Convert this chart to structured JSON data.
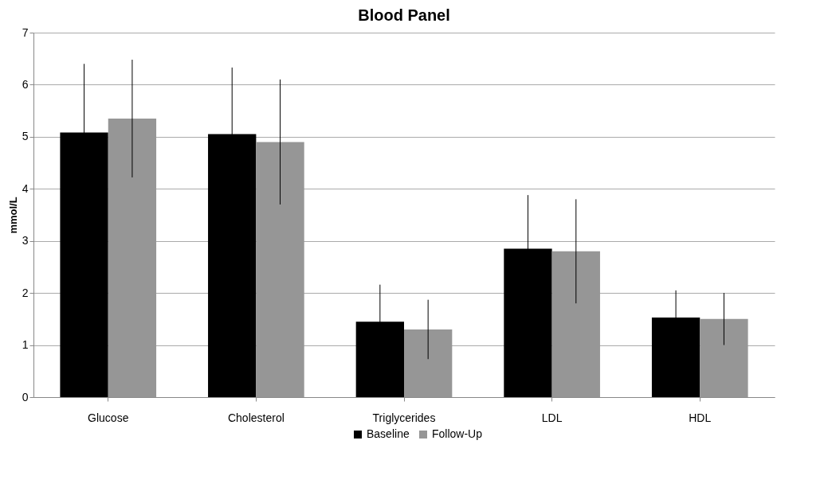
{
  "chart_data": {
    "type": "bar",
    "title": "Blood Panel",
    "ylabel": "mmol/L",
    "categories": [
      "Glucose",
      "Cholesterol",
      "Triglycerides",
      "LDL",
      "HDL"
    ],
    "series": [
      {
        "name": "Baseline",
        "color": "#000000",
        "values": [
          5.08,
          5.05,
          1.45,
          2.85,
          1.53
        ],
        "errors": [
          1.32,
          1.28,
          0.71,
          1.03,
          0.52
        ]
      },
      {
        "name": "Follow-Up",
        "color": "#969696",
        "values": [
          5.35,
          4.9,
          1.3,
          2.8,
          1.5
        ],
        "errors": [
          1.13,
          1.2,
          0.57,
          1.0,
          0.5
        ]
      }
    ],
    "ylim": [
      0,
      7
    ],
    "yticks": [
      0,
      1,
      2,
      3,
      4,
      5,
      6,
      7
    ],
    "grid": "y",
    "legend": "bottom"
  }
}
